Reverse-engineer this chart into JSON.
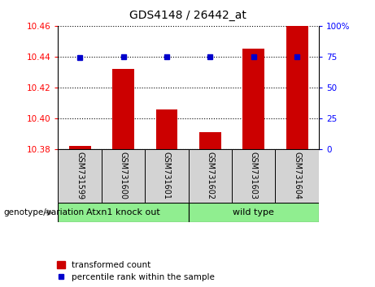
{
  "title": "GDS4148 / 26442_at",
  "samples": [
    "GSM731599",
    "GSM731600",
    "GSM731601",
    "GSM731602",
    "GSM731603",
    "GSM731604"
  ],
  "red_values": [
    10.382,
    10.432,
    10.406,
    10.391,
    10.445,
    10.46
  ],
  "blue_values": [
    74,
    75,
    75,
    75,
    75,
    75
  ],
  "ylim_left": [
    10.38,
    10.46
  ],
  "ylim_right": [
    0,
    100
  ],
  "yticks_left": [
    10.38,
    10.4,
    10.42,
    10.44,
    10.46
  ],
  "yticks_right": [
    0,
    25,
    50,
    75,
    100
  ],
  "ytick_labels_left": [
    "10.38",
    "10.40",
    "10.42",
    "10.44",
    "10.46"
  ],
  "ytick_labels_right": [
    "0",
    "25",
    "50",
    "75",
    "100%"
  ],
  "groups": [
    {
      "label": "Atxn1 knock out",
      "start": 0,
      "end": 3
    },
    {
      "label": "wild type",
      "start": 3,
      "end": 6
    }
  ],
  "group_label": "genotype/variation",
  "legend_red": "transformed count",
  "legend_blue": "percentile rank within the sample",
  "bar_color": "#cc0000",
  "dot_color": "#0000cc",
  "bg_group": "#90EE90",
  "bar_width": 0.5
}
